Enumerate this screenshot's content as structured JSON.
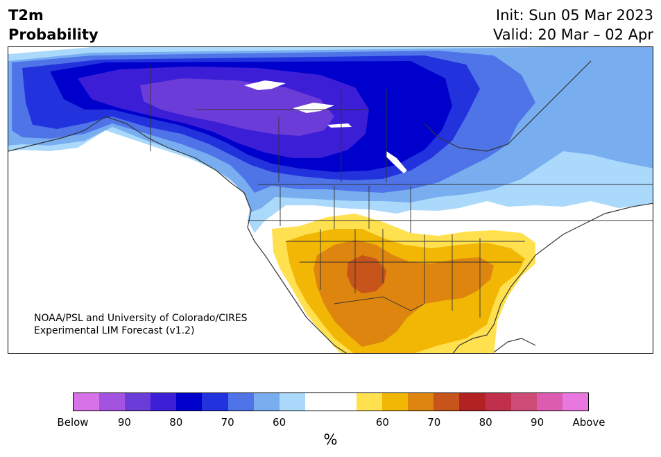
{
  "title": {
    "line1": "T2m",
    "line2": "Probability"
  },
  "header_right": {
    "init": "Init: Sun 05 Mar 2023",
    "valid": "Valid: 20 Mar – 02 Apr"
  },
  "credit": {
    "line1": "NOAA/PSL and University of Colorado/CIRES",
    "line2": "Experimental LIM Forecast (v1.2)"
  },
  "colorbar": {
    "colors": [
      "#d872e8",
      "#a453e0",
      "#6c3cd8",
      "#3c1ed6",
      "#0000cc",
      "#2233dd",
      "#4f74e8",
      "#78aef0",
      "#aad9fb",
      "#ffffff",
      "#ffffff",
      "#ffe14f",
      "#f2b705",
      "#dd850e",
      "#c7541a",
      "#b22222",
      "#c0304c",
      "#cf4b78",
      "#dc5cb0",
      "#e878df"
    ],
    "labels": [
      "Below",
      "90",
      "80",
      "70",
      "60",
      "60",
      "70",
      "80",
      "90",
      "Above"
    ],
    "unit": "%"
  },
  "map": {
    "fill_colors": {
      "ocean": "#ffffff",
      "below_60": "#aad9fb",
      "below_65": "#78aef0",
      "below_70": "#4f74e8",
      "below_75": "#2233dd",
      "below_80": "#0000cc",
      "below_85": "#3c1ed6",
      "below_90": "#6c3cd8",
      "above_60": "#ffe14f",
      "above_65": "#f2b705",
      "above_70": "#dd850e",
      "above_75": "#c7541a",
      "border": "#333333"
    }
  }
}
